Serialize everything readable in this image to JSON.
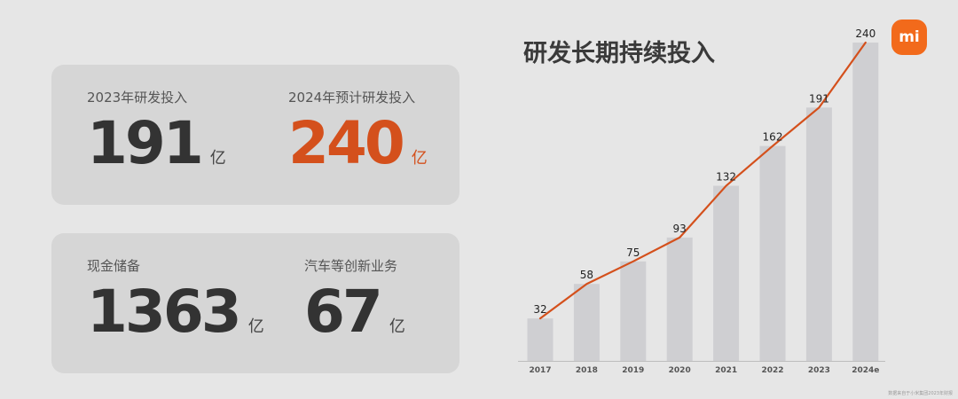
{
  "stats": {
    "rd_2023": {
      "label": "2023年研发投入",
      "value": "191",
      "unit": "亿"
    },
    "rd_2024e": {
      "label": "2024年预计研发投入",
      "value": "240",
      "unit": "亿"
    },
    "cash": {
      "label": "现金储备",
      "value": "1363",
      "unit": "亿"
    },
    "innovation": {
      "label": "汽车等创新业务",
      "value": "67",
      "unit": "亿"
    }
  },
  "logo": {
    "text": "mi"
  },
  "footnote": "数据来自于小米集团2023年财报",
  "colors": {
    "accent": "#d4501c",
    "bar": "#cfcfd2",
    "line": "#d4501c",
    "logo": "#f26a1b"
  },
  "chart_data": {
    "type": "bar",
    "title": "研发长期持续投入",
    "xlabel": "",
    "ylabel": "",
    "categories": [
      "2017",
      "2018",
      "2019",
      "2020",
      "2021",
      "2022",
      "2023",
      "2024e"
    ],
    "values": [
      32,
      58,
      75,
      93,
      132,
      162,
      191,
      240
    ],
    "data_labels": [
      "32",
      "58",
      "75",
      "93",
      "132",
      "162",
      "191",
      "240"
    ],
    "ylim": [
      0,
      240
    ],
    "grid": false,
    "legend": "none",
    "overlay_line": true
  }
}
